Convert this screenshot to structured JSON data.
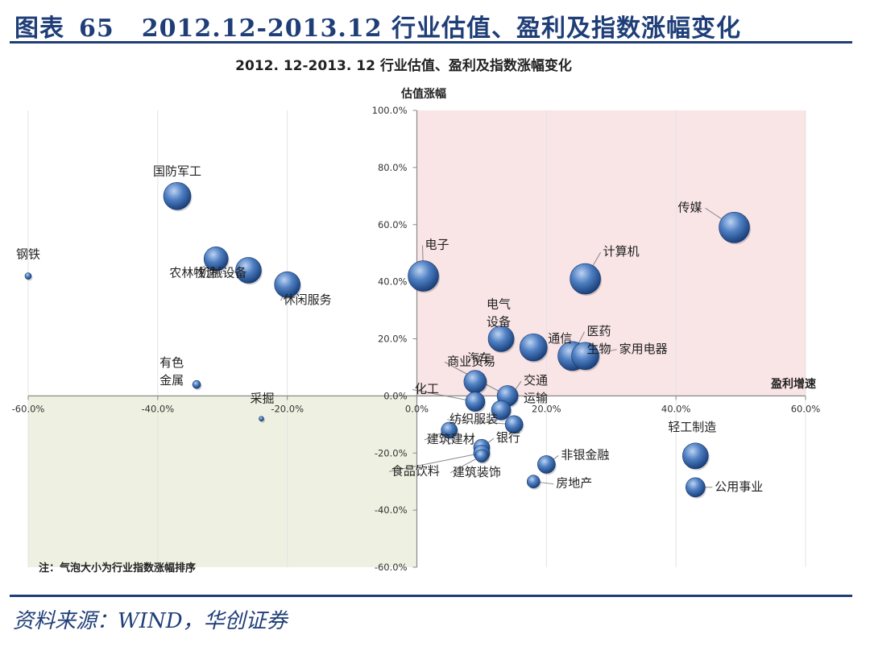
{
  "header": {
    "figure_label": "图表",
    "figure_number": "65",
    "figure_title": "2012.12-2013.12 行业估值、盈利及指数涨幅变化"
  },
  "source": "资料来源：WIND，华创证券",
  "colors": {
    "header_blue": "#1f3e78",
    "quadrant_pink": "#f9e4e6",
    "quadrant_green": "#eef1e1",
    "bubble_dark": "#1f4a88",
    "bubble_light": "#8fb3e4"
  },
  "chart_data": {
    "type": "scatter",
    "title": "2012. 12-2013. 12 行业估值、盈利及指数涨幅变化",
    "xlabel": "盈利增速",
    "ylabel": "估值涨幅",
    "xlim": [
      -0.6,
      0.6
    ],
    "ylim": [
      -0.6,
      1.0
    ],
    "xticks": [
      "-60.0%",
      "-40.0%",
      "-20.0%",
      "0.0%",
      "20.0%",
      "40.0%",
      "60.0%"
    ],
    "yticks": [
      "100.0%",
      "80.0%",
      "60.0%",
      "40.0%",
      "20.0%",
      "0.0%",
      "-20.0%",
      "-40.0%",
      "-60.0%"
    ],
    "note": "注：气泡大小为行业指数涨幅排序",
    "points": [
      {
        "name": "钢铁",
        "x": -0.6,
        "y": 0.42,
        "size": 4
      },
      {
        "name": "国防军工",
        "x": -0.37,
        "y": 0.7,
        "size": 17
      },
      {
        "name": "机械设备",
        "x": -0.26,
        "y": 0.44,
        "size": 16
      },
      {
        "name": "农林牧渔",
        "x": -0.31,
        "y": 0.48,
        "size": 15
      },
      {
        "name": "休闲服务",
        "x": -0.2,
        "y": 0.39,
        "size": 16
      },
      {
        "name": "有色金属",
        "x": -0.34,
        "y": 0.04,
        "size": 5
      },
      {
        "name": "采掘",
        "x": -0.24,
        "y": -0.08,
        "size": 3
      },
      {
        "name": "电子",
        "x": 0.01,
        "y": 0.42,
        "size": 19
      },
      {
        "name": "传媒",
        "x": 0.49,
        "y": 0.59,
        "size": 19
      },
      {
        "name": "计算机",
        "x": 0.26,
        "y": 0.41,
        "size": 19
      },
      {
        "name": "电气设备",
        "x": 0.13,
        "y": 0.2,
        "size": 16
      },
      {
        "name": "通信",
        "x": 0.18,
        "y": 0.17,
        "size": 17
      },
      {
        "name": "医药生物",
        "x": 0.24,
        "y": 0.14,
        "size": 18
      },
      {
        "name": "家用电器",
        "x": 0.26,
        "y": 0.14,
        "size": 17
      },
      {
        "name": "汽车",
        "x": 0.09,
        "y": 0.05,
        "size": 14
      },
      {
        "name": "商业贸易",
        "x": 0.14,
        "y": 0.0,
        "size": 13
      },
      {
        "name": "化工",
        "x": 0.09,
        "y": -0.02,
        "size": 12
      },
      {
        "name": "交通运输",
        "x": 0.13,
        "y": -0.05,
        "size": 12
      },
      {
        "name": "纺织服装",
        "x": 0.15,
        "y": -0.1,
        "size": 11
      },
      {
        "name": "建筑建材",
        "x": 0.05,
        "y": -0.12,
        "size": 10
      },
      {
        "name": "银行",
        "x": 0.1,
        "y": -0.18,
        "size": 10
      },
      {
        "name": "食品饮料",
        "x": 0.1,
        "y": -0.2,
        "size": 10
      },
      {
        "name": "建筑装饰",
        "x": 0.1,
        "y": -0.21,
        "size": 8
      },
      {
        "name": "非银金融",
        "x": 0.2,
        "y": -0.24,
        "size": 11
      },
      {
        "name": "房地产",
        "x": 0.18,
        "y": -0.3,
        "size": 8
      },
      {
        "name": "轻工制造",
        "x": 0.43,
        "y": -0.21,
        "size": 16
      },
      {
        "name": "公用事业",
        "x": 0.43,
        "y": -0.32,
        "size": 12
      }
    ]
  }
}
